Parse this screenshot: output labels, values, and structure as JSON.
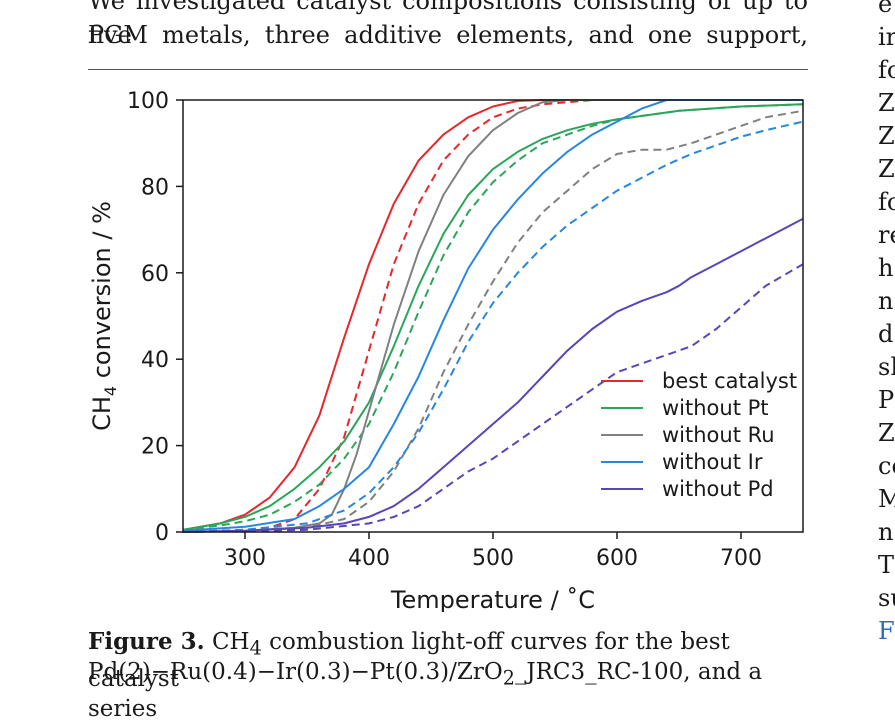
{
  "body_text": {
    "line1": "We investigated catalyst compositions consisting of up to five",
    "line2": "PGM metals, three additive elements, and one support,"
  },
  "right_column_fragments": [
    "e",
    "ir",
    "fo",
    "Z",
    "Z",
    "Z",
    "fo",
    "re",
    "h",
    "n",
    "d",
    "sh",
    "P",
    "Z",
    "co",
    "M",
    "n",
    "T",
    "su",
    "F"
  ],
  "caption": {
    "label": "Figure 3.",
    "text_pre": "CH",
    "sub": "4",
    "text_post": "combustion light-off curves for the best catalyst",
    "line2": "Pd(2)−Ru(0.4)−Ir(0.3)−Pt(0.3)/ZrO",
    "line2_sub": "2",
    "line2_post": "_JRC3_RC-100, and a series"
  },
  "chart_data": {
    "type": "line",
    "xlabel": "Temperature / ˚C",
    "ylabel_main": "CH",
    "ylabel_sub": "4",
    "ylabel_rest": " conversion / %",
    "xlim": [
      250,
      750
    ],
    "ylim": [
      0,
      100
    ],
    "xticks": [
      300,
      400,
      500,
      600,
      700
    ],
    "yticks": [
      0,
      20,
      40,
      60,
      80,
      100
    ],
    "grid": false,
    "legend_position": "lower-right",
    "legend": [
      {
        "label": "best catalyst",
        "color": "#e8262b"
      },
      {
        "label": "without Pt",
        "color": "#2aa55a"
      },
      {
        "label": "without Ru",
        "color": "#808080"
      },
      {
        "label": "without Ir",
        "color": "#2787e0"
      },
      {
        "label": "without Pd",
        "color": "#5746b8"
      }
    ],
    "series": [
      {
        "name": "best catalyst",
        "color": "#e8262b",
        "style": "solid",
        "x": [
          250,
          280,
          300,
          320,
          340,
          360,
          380,
          400,
          420,
          440,
          460,
          480,
          500,
          520,
          540,
          560,
          600,
          650,
          700,
          750
        ],
        "y": [
          0.5,
          2,
          4,
          8,
          15,
          27,
          45,
          62,
          76,
          86,
          92,
          96,
          98.5,
          99.8,
          100,
          100,
          100,
          100,
          100,
          100
        ]
      },
      {
        "name": "best catalyst",
        "color": "#e8262b",
        "style": "dashed",
        "x": [
          250,
          300,
          320,
          340,
          360,
          380,
          400,
          420,
          440,
          460,
          480,
          500,
          520,
          540,
          560,
          580,
          600,
          650,
          700,
          750
        ],
        "y": [
          0,
          0.5,
          1,
          3,
          10,
          22,
          42,
          62,
          76,
          86,
          92,
          96,
          98,
          99,
          99.5,
          100,
          100,
          100,
          100,
          100
        ]
      },
      {
        "name": "without Pt",
        "color": "#2aa55a",
        "style": "solid",
        "x": [
          250,
          280,
          300,
          320,
          340,
          360,
          380,
          400,
          420,
          440,
          460,
          480,
          500,
          520,
          540,
          560,
          580,
          600,
          650,
          700,
          750
        ],
        "y": [
          0.5,
          2,
          3.5,
          6,
          10,
          15,
          21,
          30,
          43,
          57,
          69,
          78,
          84,
          88,
          91,
          93,
          94.5,
          95.5,
          97.5,
          98.5,
          99
        ]
      },
      {
        "name": "without Pt",
        "color": "#2aa55a",
        "style": "dashed",
        "x": [
          250,
          280,
          300,
          320,
          340,
          360,
          380,
          400,
          420,
          440,
          460,
          480,
          500,
          520,
          540,
          560,
          580,
          600,
          650,
          700,
          750
        ],
        "y": [
          0.5,
          1.5,
          2.5,
          4,
          7,
          11,
          17,
          25,
          37,
          51,
          64,
          74,
          81,
          86,
          90,
          92,
          94,
          95.5,
          97.5,
          98.5,
          99
        ]
      },
      {
        "name": "without Ru",
        "color": "#808080",
        "style": "solid",
        "x": [
          250,
          300,
          340,
          360,
          370,
          380,
          390,
          400,
          420,
          440,
          460,
          480,
          500,
          520,
          540,
          560,
          580,
          600,
          650,
          700,
          750
        ],
        "y": [
          0,
          0.3,
          1,
          2,
          4,
          10,
          18,
          28,
          48,
          65,
          78,
          87,
          93,
          97,
          99.5,
          100,
          100,
          100,
          100,
          100,
          100
        ]
      },
      {
        "name": "without Ru",
        "color": "#808080",
        "style": "dashed",
        "x": [
          250,
          300,
          350,
          380,
          400,
          420,
          440,
          460,
          480,
          500,
          520,
          540,
          560,
          580,
          600,
          620,
          640,
          660,
          680,
          700,
          720,
          750
        ],
        "y": [
          0,
          0.3,
          1,
          3,
          7,
          14,
          24,
          37,
          48,
          58,
          67,
          74,
          79,
          84,
          87.5,
          88.5,
          88.5,
          90,
          92,
          94,
          96,
          97.5
        ]
      },
      {
        "name": "without Ir",
        "color": "#2787e0",
        "style": "solid",
        "x": [
          250,
          300,
          340,
          360,
          380,
          400,
          420,
          440,
          460,
          480,
          500,
          520,
          540,
          560,
          580,
          600,
          620,
          640,
          660,
          700,
          750
        ],
        "y": [
          0.3,
          1.2,
          3,
          6,
          10,
          15,
          25,
          36,
          49,
          61,
          70,
          77,
          83,
          88,
          92,
          95,
          98,
          100,
          100,
          100,
          100
        ]
      },
      {
        "name": "without Ir",
        "color": "#2787e0",
        "style": "dashed",
        "x": [
          250,
          300,
          350,
          380,
          400,
          420,
          440,
          460,
          480,
          500,
          520,
          540,
          560,
          580,
          600,
          620,
          640,
          660,
          680,
          700,
          720,
          750
        ],
        "y": [
          0,
          0.5,
          2,
          5,
          9,
          15,
          23,
          33,
          44,
          53,
          60,
          66,
          71,
          75,
          79,
          82,
          85,
          87.5,
          89.5,
          91.5,
          93,
          95
        ]
      },
      {
        "name": "without Pd",
        "color": "#5746b8",
        "style": "solid",
        "x": [
          250,
          300,
          350,
          380,
          400,
          420,
          440,
          460,
          480,
          500,
          520,
          540,
          560,
          580,
          600,
          620,
          640,
          650,
          660,
          680,
          700,
          720,
          750
        ],
        "y": [
          0,
          0.3,
          1,
          2,
          3.5,
          6,
          10,
          15,
          20,
          25,
          30,
          36,
          42,
          47,
          51,
          53.5,
          55.5,
          57,
          59,
          62,
          65,
          68,
          72.5
        ]
      },
      {
        "name": "without Pd",
        "color": "#5746b8",
        "style": "dashed",
        "x": [
          250,
          300,
          350,
          400,
          420,
          440,
          460,
          480,
          500,
          520,
          540,
          560,
          580,
          600,
          620,
          640,
          660,
          680,
          700,
          720,
          750
        ],
        "y": [
          0,
          0.2,
          0.5,
          2,
          3.5,
          6,
          10,
          14,
          17,
          21,
          25,
          29,
          33,
          37,
          39,
          41,
          43,
          47,
          52,
          57,
          62
        ]
      }
    ]
  }
}
